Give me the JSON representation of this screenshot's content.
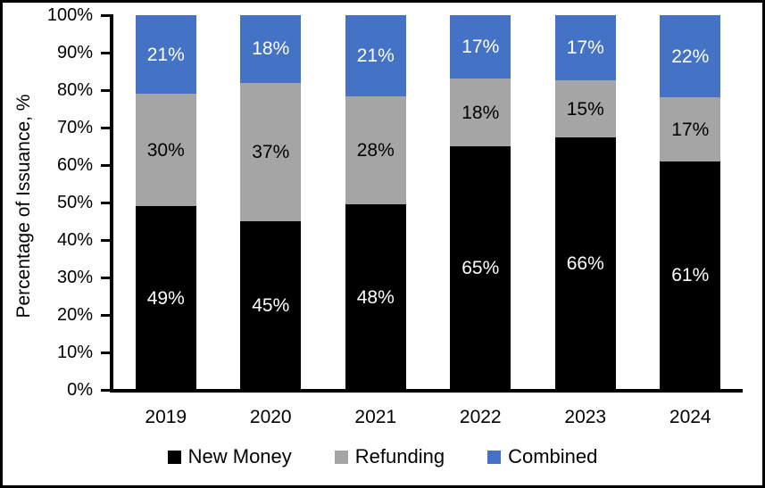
{
  "chart_data": {
    "type": "bar",
    "stacked": true,
    "normalized_to_100": true,
    "title": "",
    "xlabel": "",
    "ylabel": "Percentage of Issuance, %",
    "categories": [
      "2019",
      "2020",
      "2021",
      "2022",
      "2023",
      "2024"
    ],
    "series": [
      {
        "name": "New Money",
        "color": "#000000",
        "label_color": "#ffffff",
        "values": [
          49,
          45,
          48,
          65,
          66,
          61
        ]
      },
      {
        "name": "Refunding",
        "color": "#A5A5A5",
        "label_color": "#000000",
        "values": [
          30,
          37,
          28,
          18,
          15,
          17
        ]
      },
      {
        "name": "Combined",
        "color": "#4472C4",
        "label_color": "#ffffff",
        "values": [
          21,
          18,
          21,
          17,
          17,
          22
        ]
      }
    ],
    "data_label_suffix": "%",
    "y_ticks": [
      "0%",
      "10%",
      "20%",
      "30%",
      "40%",
      "50%",
      "60%",
      "70%",
      "80%",
      "90%",
      "100%"
    ],
    "ylim": [
      0,
      100
    ],
    "grid": false,
    "legend_position": "bottom",
    "axis_color": "#000000",
    "background_color": "#ffffff",
    "frame_border_color": "#000000"
  }
}
